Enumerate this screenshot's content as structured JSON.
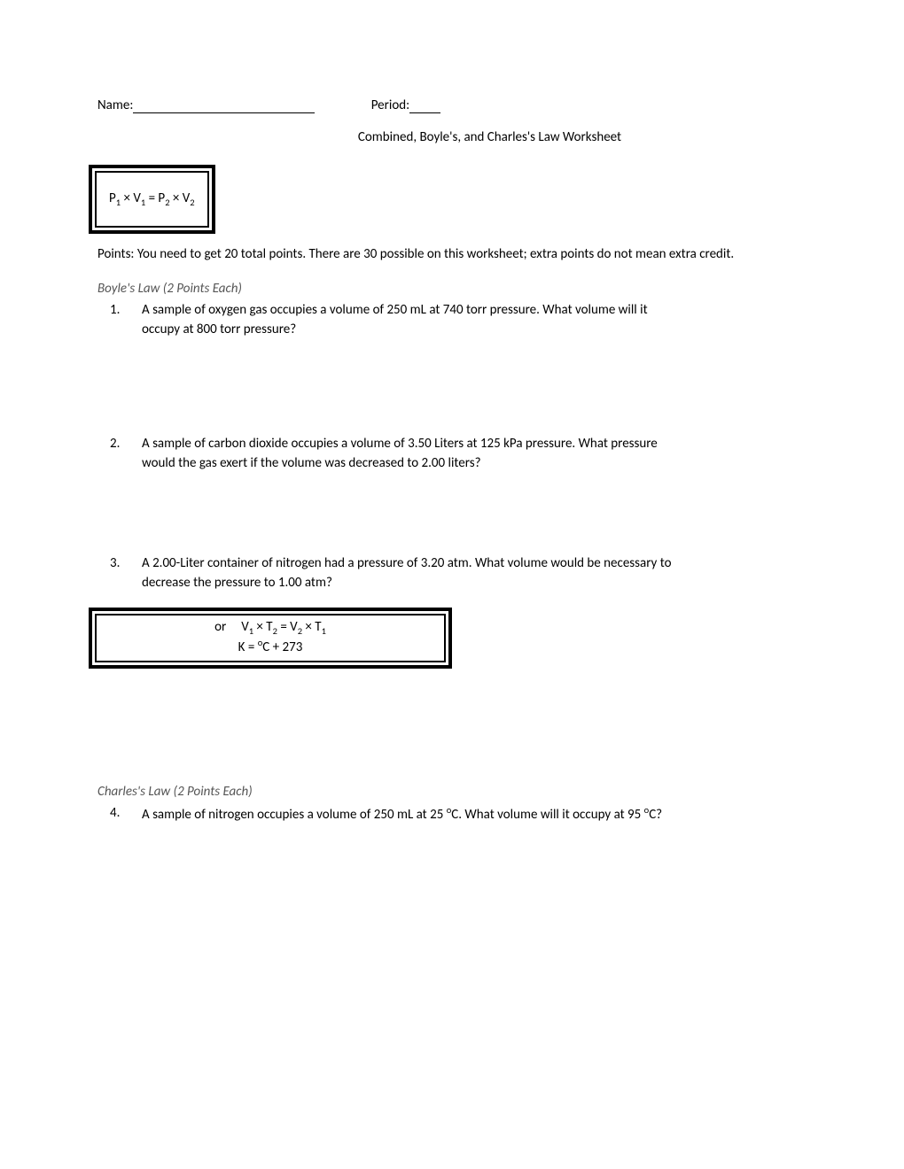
{
  "header": {
    "name_label": "Name:",
    "period_label": "Period:"
  },
  "title": "Combined, Boyle's, and Charles's Law Worksheet",
  "formula1": {
    "text": "P₁ × V₁ = P₂ × V₂"
  },
  "points_text": "Points: You need to get 20 total points.  There are 30 possible on this worksheet; extra points do not mean extra credit.",
  "section1": {
    "header": "Boyle's Law (2 Points Each)",
    "q1_num": "1.",
    "q1_line1": "A sample of oxygen gas occupies a volume of 250 mL at 740 torr pressure. What volume will it",
    "q1_line2": "occupy at 800 torr pressure?",
    "q2_num": "2.",
    "q2_line1": "A sample of carbon dioxide occupies a volume of 3.50 Liters at 125 kPa pressure.  What pressure",
    "q2_line2": "would the gas exert if the volume was decreased to 2.00 liters?",
    "q3_num": "3.",
    "q3_line1": "A 2.00-Liter container of nitrogen had a pressure of 3.20 atm. What volume would be necessary to",
    "q3_line2": "decrease the pressure to 1.00 atm?"
  },
  "formula2": {
    "line1_prefix": "or",
    "line1_formula": "V₁ × T₂ = V₂ × T₁",
    "line2": "K = °C + 273"
  },
  "section2": {
    "header": "Charles's Law (2 Points Each)",
    "q4_num": "4.",
    "q4_text": "A sample of nitrogen occupies a volume of 250 mL at 25 °C. What volume will it occupy at 95 °C?"
  }
}
